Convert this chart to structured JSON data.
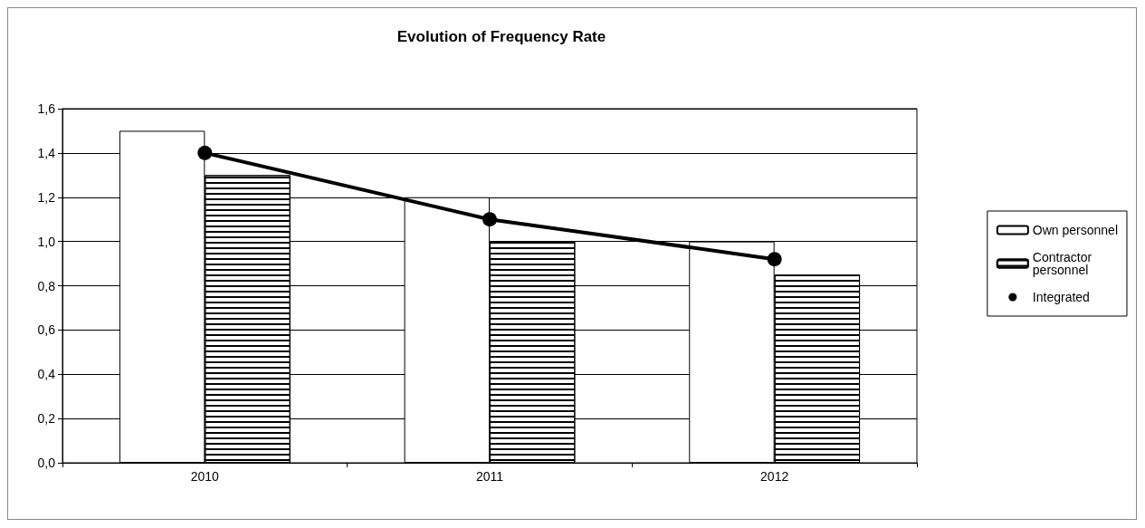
{
  "chart_data": {
    "type": "bar",
    "title": "Evolution of Frequency Rate",
    "categories": [
      "2010",
      "2011",
      "2012"
    ],
    "series": [
      {
        "name": "Own personnel",
        "color": "#ffffff",
        "values": [
          1.5,
          1.2,
          1.0
        ]
      },
      {
        "name": "Contractor\npersonnel",
        "color": "#ffffff",
        "values": [
          1.3,
          1.0,
          0.85
        ]
      },
      {
        "name": "Integrated",
        "type": "line",
        "color": "#000000",
        "values": [
          1.4,
          1.1,
          0.92
        ],
        "marker": "circle"
      }
    ],
    "ylim": [
      0,
      1.6
    ],
    "yticks": [
      {
        "value": 0,
        "label": "0,0"
      },
      {
        "value": 0.2,
        "label": "0,2"
      },
      {
        "value": 0.4,
        "label": "0,4"
      },
      {
        "value": 0.6,
        "label": "0,6"
      },
      {
        "value": 0.8,
        "label": "0,8"
      },
      {
        "value": 1.0,
        "label": "1,0"
      },
      {
        "value": 1.2,
        "label": "1,2"
      },
      {
        "value": 1.4,
        "label": "1,4"
      },
      {
        "value": 1.6,
        "label": "1,6"
      }
    ],
    "grid": "y",
    "legend": "right"
  }
}
